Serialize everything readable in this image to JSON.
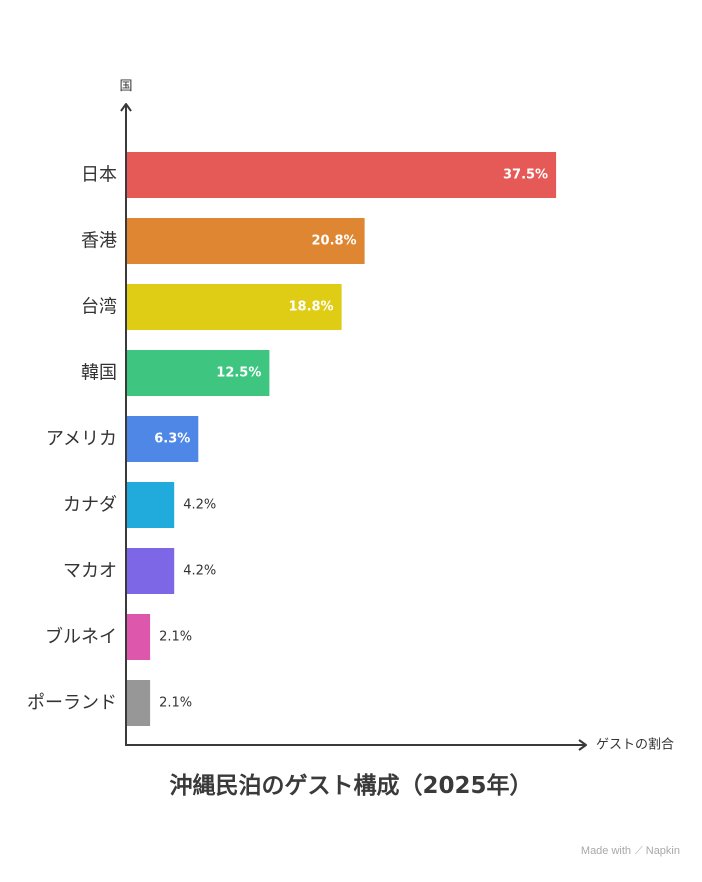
{
  "chart_data": {
    "type": "bar",
    "orientation": "horizontal",
    "title": "沖縄民泊のゲスト構成（2025年）",
    "xlabel": "ゲストの割合",
    "ylabel": "国",
    "categories": [
      "日本",
      "香港",
      "台湾",
      "韓国",
      "アメリカ",
      "カナダ",
      "マカオ",
      "ブルネイ",
      "ポーランド"
    ],
    "values": [
      37.5,
      20.8,
      18.8,
      12.5,
      6.3,
      4.2,
      4.2,
      2.1,
      2.1
    ],
    "data_labels": [
      "37.5%",
      "20.8%",
      "18.8%",
      "12.5%",
      "6.3%",
      "4.2%",
      "4.2%",
      "2.1%",
      "2.1%"
    ],
    "colors": [
      "#e55a57",
      "#df8633",
      "#dfcc14",
      "#3ec681",
      "#4e87e6",
      "#21abdc",
      "#7e67e6",
      "#dd57ac",
      "#979797"
    ],
    "xlim": [
      0,
      80
    ],
    "grid": false,
    "legend": "none"
  },
  "watermark": {
    "prefix": "Made with",
    "brand": "Napkin"
  }
}
